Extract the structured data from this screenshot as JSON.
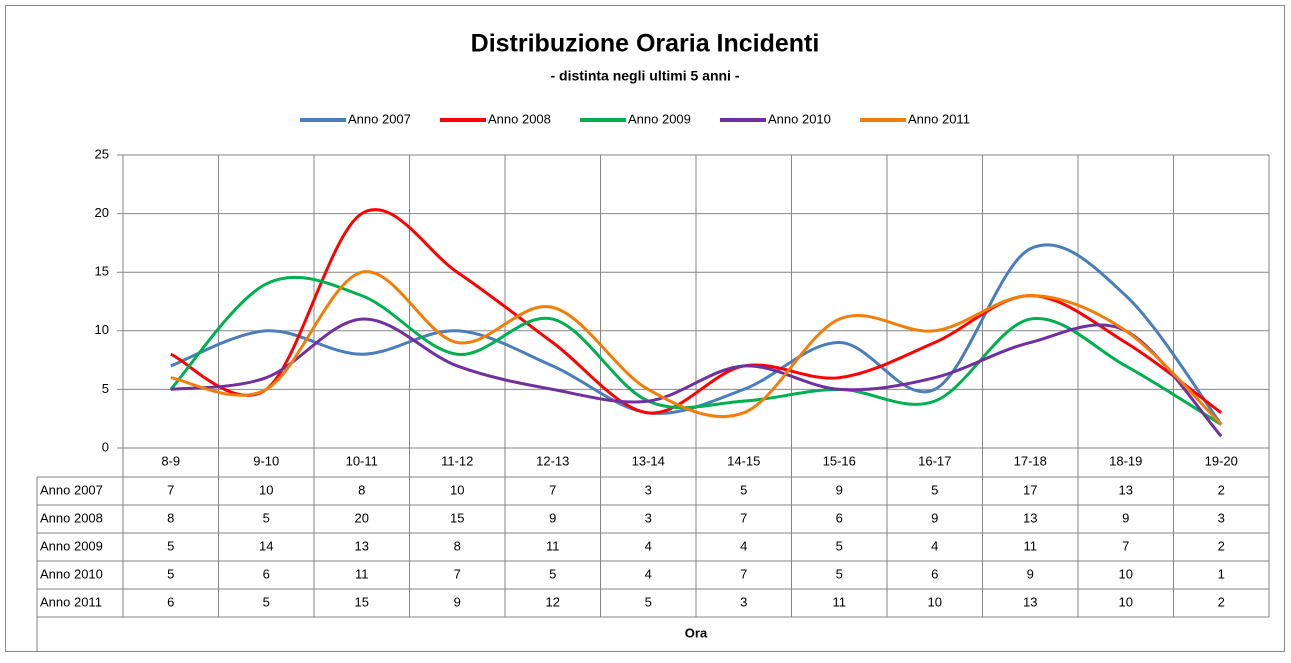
{
  "chart_data": {
    "type": "line",
    "title": "Distribuzione Oraria Incidenti",
    "subtitle": "- distinta negli ultimi 5 anni -",
    "x_label": "Ora",
    "categories": [
      "8-9",
      "9-10",
      "10-11",
      "11-12",
      "12-13",
      "13-14",
      "14-15",
      "15-16",
      "16-17",
      "17-18",
      "18-19",
      "19-20"
    ],
    "series": [
      {
        "name": "Anno 2007",
        "color": "#4a7ebb",
        "values": [
          7,
          10,
          8,
          10,
          7,
          3,
          5,
          9,
          5,
          17,
          13,
          2
        ]
      },
      {
        "name": "Anno 2008",
        "color": "#ff0000",
        "values": [
          8,
          5,
          20,
          15,
          9,
          3,
          7,
          6,
          9,
          13,
          9,
          3
        ]
      },
      {
        "name": "Anno 2009",
        "color": "#00b050",
        "values": [
          5,
          14,
          13,
          8,
          11,
          4,
          4,
          5,
          4,
          11,
          7,
          2
        ]
      },
      {
        "name": "Anno 2010",
        "color": "#7030a0",
        "values": [
          5,
          6,
          11,
          7,
          5,
          4,
          7,
          5,
          6,
          9,
          10,
          1
        ]
      },
      {
        "name": "Anno 2011",
        "color": "#f07f09",
        "values": [
          6,
          5,
          15,
          9,
          12,
          5,
          3,
          11,
          10,
          13,
          10,
          2
        ]
      }
    ],
    "ylim": [
      0,
      25
    ],
    "yticks": [
      0,
      5,
      10,
      15,
      20,
      25
    ],
    "grid": true,
    "smooth": true,
    "legend": "top"
  }
}
